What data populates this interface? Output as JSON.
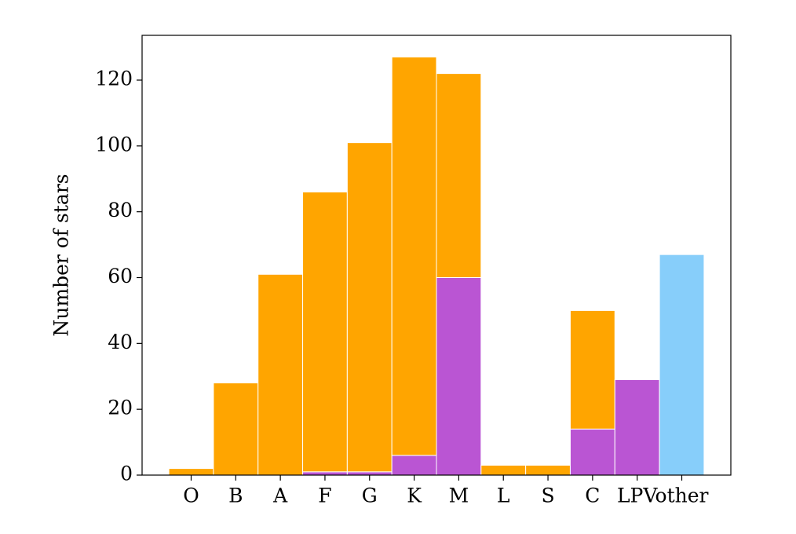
{
  "chart_data": {
    "type": "stacked-bar",
    "ylabel": "Number of stars",
    "categories": [
      "O",
      "B",
      "A",
      "F",
      "G",
      "K",
      "M",
      "L",
      "S",
      "C",
      "LPV",
      "other"
    ],
    "series": [
      {
        "color": "#ba55d3",
        "values": [
          0,
          0,
          0,
          1,
          1,
          6,
          60,
          0,
          0,
          14,
          29,
          0
        ]
      },
      {
        "color": "#ffa500",
        "values": [
          2,
          28,
          61,
          85,
          100,
          121,
          62,
          3,
          3,
          36,
          0,
          0
        ]
      },
      {
        "color": "#87cefa",
        "values": [
          0,
          0,
          0,
          0,
          0,
          0,
          0,
          0,
          0,
          0,
          0,
          67
        ]
      }
    ],
    "ylim": [
      0,
      133.6
    ],
    "yticks": [
      0,
      20,
      40,
      60,
      80,
      100,
      120
    ],
    "grid": false
  }
}
